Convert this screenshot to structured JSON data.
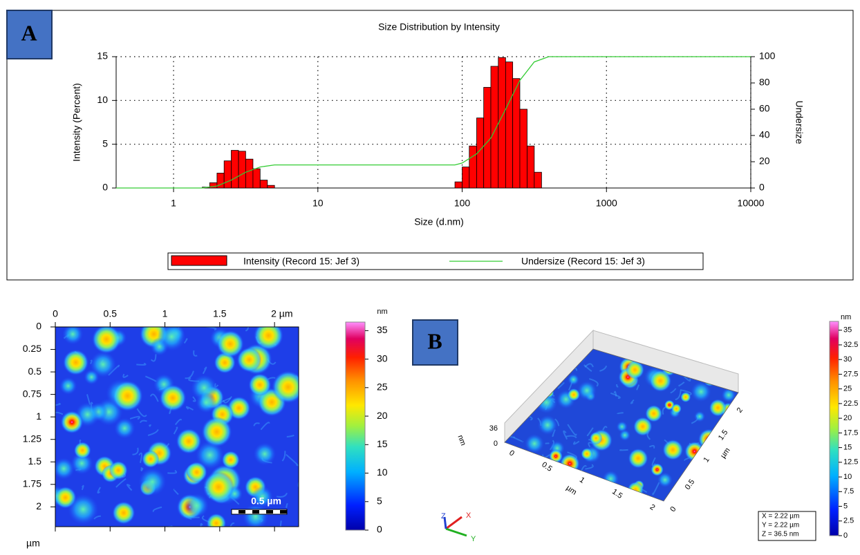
{
  "panel_a": {
    "label": "A"
  },
  "chart_data": {
    "type": "histogram",
    "title": "Size Distribution by Intensity",
    "x_label": "Size (d.nm)",
    "y_label": "Intensity (Percent)",
    "y2_label": "Undersize",
    "x_scale": "log",
    "xlim": [
      0.4,
      10000
    ],
    "xticks": [
      1,
      10,
      100,
      1000,
      10000
    ],
    "ylim": [
      0,
      15
    ],
    "yticks": [
      0,
      5,
      10,
      15
    ],
    "y2lim": [
      0,
      100
    ],
    "y2ticks": [
      0,
      20,
      40,
      60,
      80,
      100
    ],
    "grid": true,
    "legend": "bottom",
    "bins": [
      1.58,
      1.78,
      2.0,
      2.24,
      2.51,
      2.82,
      3.16,
      3.55,
      3.98,
      4.47,
      5.01,
      5.62,
      6.31,
      7.08,
      7.94,
      8.91,
      10.0,
      11.2,
      12.6,
      14.1,
      15.8,
      17.8,
      20.0,
      22.4,
      25.1,
      28.2,
      31.6,
      35.5,
      39.8,
      44.7,
      50.1,
      56.2,
      63.1,
      70.8,
      79.4,
      89.1,
      100,
      112,
      126,
      141,
      158,
      178,
      200,
      224,
      251,
      282,
      316,
      355
    ],
    "series": [
      {
        "name": "Intensity (Record 15: Jef 3)",
        "type": "histogram",
        "color": "#ff0000",
        "values": [
          0.1,
          0.6,
          1.7,
          3.1,
          4.3,
          4.2,
          3.3,
          2.2,
          0.9,
          0.3,
          0,
          0,
          0,
          0,
          0,
          0,
          0,
          0,
          0,
          0,
          0,
          0,
          0,
          0,
          0,
          0,
          0,
          0,
          0,
          0,
          0,
          0,
          0,
          0,
          0,
          0.7,
          2.4,
          4.8,
          8.0,
          11.5,
          13.9,
          14.9,
          14.4,
          12.5,
          9.0,
          4.8,
          1.8
        ]
      },
      {
        "name": "Undersize (Record 15: Jef 3)",
        "type": "line",
        "axis": "y2",
        "color": "#33cc33",
        "x": [
          0.4,
          1.58,
          2.0,
          2.51,
          3.16,
          3.98,
          5.01,
          89.1,
          100,
          126,
          158,
          200,
          251,
          316,
          398,
          10000
        ],
        "values": [
          0,
          0,
          1.5,
          6,
          12,
          16,
          17.6,
          17.6,
          19,
          26,
          38,
          60,
          82,
          96,
          100,
          100
        ]
      }
    ]
  },
  "afm_2d": {
    "xlim": [
      0,
      2.22
    ],
    "ylim": [
      0,
      2.22
    ],
    "xticks": [
      0,
      0.5,
      1,
      1.5,
      {
        "value": 2,
        "label": "2 µm"
      }
    ],
    "yticks": [
      0,
      0.25,
      0.5,
      0.75,
      1,
      1.25,
      1.5,
      1.75,
      2
    ],
    "y_unit": "µm",
    "scale_bar": "0.5 µm"
  },
  "colorbar_2d": {
    "unit": "nm",
    "lim": [
      0,
      36.5
    ],
    "ticks": [
      0,
      5,
      10,
      15,
      20,
      25,
      30,
      35
    ]
  },
  "panel_b": {
    "label": "B"
  },
  "afm_3d": {
    "z_unit": "nm",
    "zticks": [
      0,
      36
    ],
    "xlim": [
      0,
      2.22
    ],
    "xticks": [
      0,
      0.5,
      1,
      1.5,
      2
    ],
    "x_unit": "µm",
    "yticks": [
      0,
      0.5,
      1,
      1.5,
      2
    ],
    "y_unit": "µm",
    "triad": [
      "X",
      "Y",
      "Z"
    ],
    "info": [
      "X = 2.22 µm",
      "Y = 2.22 µm",
      "Z = 36.5 nm"
    ]
  },
  "colorbar_3d": {
    "unit": "nm",
    "lim": [
      0,
      36.5
    ],
    "ticks": [
      0,
      2.5,
      5,
      7.5,
      10,
      12.5,
      15,
      17.5,
      20,
      22.5,
      25,
      27.5,
      30,
      32.5,
      35
    ]
  }
}
